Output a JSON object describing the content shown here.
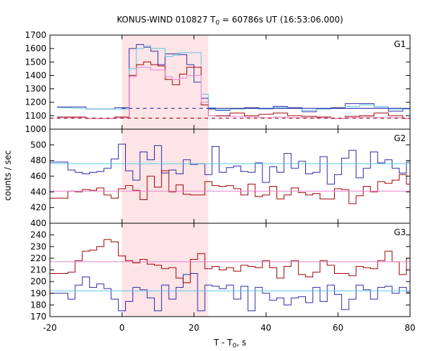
{
  "chart_data": {
    "type": "line",
    "title": "KONUS-WIND 010827 T",
    "title_sub": "0",
    "title_rest": " = 60786s UT (16:53:06.000)",
    "xlabel": "T - T",
    "xlabel_sub": "0",
    "xlabel_rest": ", s",
    "ylabel": "counts / sec",
    "xlim": [
      -20,
      80
    ],
    "x_ticks": [
      "-20",
      "0",
      "20",
      "40",
      "60",
      "80"
    ],
    "highlight_region": [
      0,
      24
    ],
    "colors": {
      "blue": "#2a2aa8",
      "red": "#a00000",
      "cyan": "#5bc8e6",
      "pink": "#e87fd0",
      "highlight": "#fde4e6"
    },
    "panels": [
      {
        "label": "G1",
        "ylim": [
          1000,
          1700
        ],
        "y_ticks": [
          "1000",
          "1100",
          "1200",
          "1300",
          "1400",
          "1500",
          "1600",
          "1700"
        ],
        "bin_edges": [
          -18,
          -14,
          -10,
          -6,
          -2,
          0,
          2,
          4,
          6,
          8,
          10,
          12,
          14,
          16,
          18,
          20,
          22,
          24,
          26,
          30,
          34,
          38,
          42,
          46,
          50,
          54,
          58,
          62,
          66,
          70,
          74,
          78,
          80
        ],
        "series": [
          {
            "color": "blue",
            "values": [
              1165,
              1165,
              1150,
              1150,
              1160,
              1160,
              1600,
              1630,
              1610,
              1580,
              1480,
              1560,
              1560,
              1555,
              1480,
              1350,
              1230,
              1150,
              1140,
              1150,
              1160,
              1150,
              1170,
              1160,
              1130,
              1150,
              1160,
              1190,
              1190,
              1165,
              1135,
              1150
            ]
          },
          {
            "color": "cyan",
            "values": [
              1160,
              1155,
              1150,
              1150,
              1150,
              1150,
              1450,
              1600,
              1620,
              1600,
              1600,
              1540,
              1550,
              1570,
              1570,
              1570,
              1260,
              1160,
              1145,
              1150,
              1155,
              1150,
              1160,
              1155,
              1140,
              1150,
              1155,
              1170,
              1180,
              1165,
              1150,
              1150
            ]
          },
          {
            "color": "red",
            "values": [
              1090,
              1090,
              1080,
              1080,
              1090,
              1090,
              1400,
              1480,
              1500,
              1480,
              1470,
              1370,
              1330,
              1410,
              1460,
              1460,
              1180,
              1100,
              1100,
              1120,
              1100,
              1110,
              1120,
              1100,
              1095,
              1090,
              1080,
              1095,
              1100,
              1120,
              1100,
              1080
            ]
          },
          {
            "color": "pink",
            "values": [
              1085,
              1085,
              1080,
              1080,
              1085,
              1085,
              1390,
              1460,
              1460,
              1440,
              1440,
              1390,
              1370,
              1380,
              1400,
              1400,
              1200,
              1100,
              1095,
              1095,
              1090,
              1085,
              1090,
              1085,
              1085,
              1085,
              1080,
              1085,
              1090,
              1085,
              1085,
              1080
            ]
          }
        ],
        "baselines": [
          {
            "color": "blue",
            "value": 1155,
            "x_range": [
              0,
              24
            ],
            "dashed": true
          },
          {
            "color": "blue",
            "value": 1155,
            "x_range": [
              24,
              80
            ],
            "dashed": false
          },
          {
            "color": "red",
            "value": 1082,
            "x_range": [
              -20,
              80
            ],
            "dashed": true
          }
        ]
      },
      {
        "label": "G2",
        "ylim": [
          400,
          520
        ],
        "y_ticks": [
          "400",
          "420",
          "440",
          "460",
          "480",
          "500"
        ],
        "bin_edges": [
          -20,
          -15,
          -13,
          -11,
          -9,
          -7,
          -5,
          -3,
          -1,
          1,
          3,
          5,
          7,
          9,
          11,
          13,
          15,
          17,
          19,
          21,
          23,
          25,
          27,
          29,
          31,
          33,
          35,
          37,
          39,
          41,
          43,
          45,
          47,
          49,
          51,
          53,
          55,
          57,
          59,
          61,
          63,
          65,
          67,
          69,
          71,
          73,
          75,
          77,
          79,
          80
        ],
        "series": [
          {
            "color": "blue",
            "values": [
              478,
              468,
              465,
              463,
              465,
              466,
              470,
              482,
              501,
              467,
              455,
              491,
              481,
              499,
              464,
              468,
              463,
              481,
              475,
              476,
              462,
              498,
              465,
              471,
              473,
              466,
              465,
              477,
              452,
              472,
              465,
              489,
              470,
              479,
              463,
              465,
              485,
              450,
              462,
              483,
              493,
              458,
              470,
              491,
              477,
              481,
              470,
              464,
              478
            ]
          },
          {
            "color": "red",
            "values": [
              432,
              441,
              440,
              443,
              442,
              445,
              436,
              432,
              444,
              448,
              442,
              430,
              460,
              446,
              467,
              440,
              449,
              437,
              436,
              436,
              453,
              448,
              447,
              448,
              444,
              436,
              450,
              434,
              436,
              447,
              431,
              436,
              445,
              439,
              436,
              438,
              431,
              431,
              444,
              443,
              425,
              435,
              447,
              440,
              453,
              451,
              455,
              462,
              450
            ]
          },
          {
            "color": "cyan",
            "values": [
              476,
              476,
              476,
              476,
              476,
              476,
              476,
              476,
              476,
              476,
              476,
              476,
              476,
              476,
              476,
              476,
              476,
              476,
              476,
              476,
              476,
              476,
              476,
              476,
              476,
              476,
              476,
              476,
              476,
              476,
              476,
              476,
              476,
              476,
              476,
              476,
              476,
              476,
              476,
              476,
              476,
              476,
              476,
              476,
              476,
              476,
              476,
              476,
              476
            ]
          },
          {
            "color": "pink",
            "values": [
              441,
              441,
              441,
              441,
              441,
              441,
              441,
              441,
              441,
              441,
              441,
              441,
              441,
              441,
              441,
              441,
              441,
              441,
              441,
              441,
              441,
              441,
              441,
              441,
              441,
              441,
              441,
              441,
              441,
              441,
              441,
              441,
              441,
              441,
              441,
              441,
              441,
              441,
              441,
              441,
              441,
              441,
              441,
              441,
              441,
              441,
              441,
              441,
              441
            ]
          }
        ],
        "baselines": []
      },
      {
        "label": "G3",
        "ylim": [
          170,
          250
        ],
        "y_ticks": [
          "170",
          "180",
          "190",
          "200",
          "210",
          "220",
          "230",
          "240"
        ],
        "bin_edges": [
          -20,
          -15,
          -13,
          -11,
          -9,
          -7,
          -5,
          -3,
          -1,
          1,
          3,
          5,
          7,
          9,
          11,
          13,
          15,
          17,
          19,
          21,
          23,
          25,
          27,
          29,
          31,
          33,
          35,
          37,
          39,
          41,
          43,
          45,
          47,
          49,
          51,
          53,
          55,
          57,
          59,
          61,
          63,
          65,
          67,
          69,
          71,
          73,
          75,
          77,
          79,
          80
        ],
        "series": [
          {
            "color": "blue",
            "values": [
              190,
              185,
              197,
              204,
              195,
              198,
              194,
              185,
              175,
              183,
              195,
              193,
              186,
              175,
              197,
              185,
              195,
              206,
              207,
              175,
              197,
              196,
              194,
              197,
              185,
              196,
              175,
              195,
              190,
              184,
              186,
              180,
              186,
              187,
              182,
              195,
              183,
              197,
              189,
              176,
              185,
              197,
              193,
              185,
              195,
              196,
              190,
              195,
              191
            ]
          },
          {
            "color": "red",
            "values": [
              207,
              208,
              218,
              226,
              227,
              230,
              236,
              234,
              222,
              218,
              216,
              219,
              215,
              214,
              211,
              212,
              203,
              199,
              219,
              224,
              211,
              213,
              210,
              212,
              209,
              214,
              213,
              212,
              218,
              212,
              203,
              213,
              218,
              206,
              204,
              208,
              218,
              214,
              207,
              207,
              205,
              213,
              212,
              211,
              218,
              226,
              217,
              206,
              220
            ]
          },
          {
            "color": "cyan",
            "values": [
              192,
              192,
              192,
              192,
              192,
              192,
              192,
              192,
              192,
              192,
              192,
              192,
              192,
              192,
              192,
              192,
              192,
              192,
              192,
              192,
              192,
              192,
              192,
              192,
              192,
              192,
              192,
              192,
              192,
              192,
              192,
              192,
              192,
              192,
              192,
              192,
              192,
              192,
              192,
              192,
              192,
              192,
              192,
              192,
              192,
              192,
              192,
              192,
              192
            ]
          },
          {
            "color": "pink",
            "values": [
              217,
              217,
              217,
              217,
              217,
              217,
              217,
              217,
              217,
              217,
              217,
              217,
              217,
              217,
              217,
              217,
              217,
              217,
              217,
              217,
              217,
              217,
              217,
              217,
              217,
              217,
              217,
              217,
              217,
              217,
              217,
              217,
              217,
              217,
              217,
              217,
              217,
              217,
              217,
              217,
              217,
              217,
              217,
              217,
              217,
              217,
              217,
              217,
              217
            ]
          }
        ],
        "baselines": []
      }
    ]
  }
}
